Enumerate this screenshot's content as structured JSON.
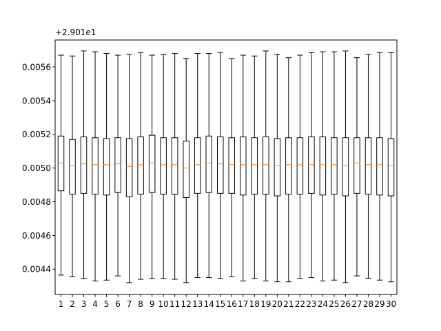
{
  "chart_data": {
    "type": "box",
    "title": "",
    "xlabel": "",
    "ylabel": "",
    "offset_text": "+2.901e1",
    "ylim": [
      0.00425,
      0.00576
    ],
    "yticks": [
      0.0044,
      0.0046,
      0.0048,
      0.005,
      0.0052,
      0.0054,
      0.0056
    ],
    "ytick_labels": [
      "0.0044",
      "0.0046",
      "0.0048",
      "0.0050",
      "0.0052",
      "0.0054",
      "0.0056"
    ],
    "categories": [
      "1",
      "2",
      "3",
      "4",
      "5",
      "6",
      "7",
      "8",
      "9",
      "10",
      "11",
      "12",
      "13",
      "14",
      "15",
      "16",
      "17",
      "18",
      "19",
      "20",
      "21",
      "22",
      "23",
      "24",
      "25",
      "26",
      "27",
      "28",
      "29",
      "30"
    ],
    "boxes": [
      {
        "whislo": 0.004365,
        "q1": 0.004865,
        "med": 0.00503,
        "q3": 0.00519,
        "whishi": 0.00567
      },
      {
        "whislo": 0.004355,
        "q1": 0.004845,
        "med": 0.005015,
        "q3": 0.00517,
        "whishi": 0.005665
      },
      {
        "whislo": 0.004345,
        "q1": 0.00485,
        "med": 0.005025,
        "q3": 0.005185,
        "whishi": 0.005695
      },
      {
        "whislo": 0.00433,
        "q1": 0.004845,
        "med": 0.00502,
        "q3": 0.00518,
        "whishi": 0.00569
      },
      {
        "whislo": 0.004335,
        "q1": 0.00484,
        "med": 0.00502,
        "q3": 0.005175,
        "whishi": 0.00568
      },
      {
        "whislo": 0.00436,
        "q1": 0.004855,
        "med": 0.005025,
        "q3": 0.00518,
        "whishi": 0.00567
      },
      {
        "whislo": 0.00432,
        "q1": 0.00483,
        "med": 0.00501,
        "q3": 0.005175,
        "whishi": 0.005675
      },
      {
        "whislo": 0.00434,
        "q1": 0.004845,
        "med": 0.00502,
        "q3": 0.005185,
        "whishi": 0.005685
      },
      {
        "whislo": 0.004345,
        "q1": 0.004855,
        "med": 0.00503,
        "q3": 0.005195,
        "whishi": 0.00567
      },
      {
        "whislo": 0.004345,
        "q1": 0.004845,
        "med": 0.00502,
        "q3": 0.00518,
        "whishi": 0.005675
      },
      {
        "whislo": 0.00434,
        "q1": 0.004845,
        "med": 0.00502,
        "q3": 0.00518,
        "whishi": 0.00568
      },
      {
        "whislo": 0.00432,
        "q1": 0.004825,
        "med": 0.005,
        "q3": 0.00516,
        "whishi": 0.00565
      },
      {
        "whislo": 0.00435,
        "q1": 0.00485,
        "med": 0.00502,
        "q3": 0.00518,
        "whishi": 0.00568
      },
      {
        "whislo": 0.00435,
        "q1": 0.004855,
        "med": 0.00503,
        "q3": 0.00519,
        "whishi": 0.00568
      },
      {
        "whislo": 0.004345,
        "q1": 0.00485,
        "med": 0.005025,
        "q3": 0.005185,
        "whishi": 0.005685
      },
      {
        "whislo": 0.004355,
        "q1": 0.00485,
        "med": 0.00502,
        "q3": 0.00518,
        "whishi": 0.00565
      },
      {
        "whislo": 0.00433,
        "q1": 0.00484,
        "med": 0.00502,
        "q3": 0.005185,
        "whishi": 0.00567
      },
      {
        "whislo": 0.004345,
        "q1": 0.004845,
        "med": 0.00502,
        "q3": 0.00518,
        "whishi": 0.005665
      },
      {
        "whislo": 0.00433,
        "q1": 0.004845,
        "med": 0.00502,
        "q3": 0.005185,
        "whishi": 0.005695
      },
      {
        "whislo": 0.004325,
        "q1": 0.004835,
        "med": 0.005015,
        "q3": 0.005175,
        "whishi": 0.005675
      },
      {
        "whislo": 0.004325,
        "q1": 0.004845,
        "med": 0.00502,
        "q3": 0.00518,
        "whishi": 0.005655
      },
      {
        "whislo": 0.004345,
        "q1": 0.004845,
        "med": 0.00502,
        "q3": 0.00518,
        "whishi": 0.00567
      },
      {
        "whislo": 0.00435,
        "q1": 0.00485,
        "med": 0.00502,
        "q3": 0.005185,
        "whishi": 0.005685
      },
      {
        "whislo": 0.00433,
        "q1": 0.00484,
        "med": 0.00502,
        "q3": 0.005185,
        "whishi": 0.00569
      },
      {
        "whislo": 0.004335,
        "q1": 0.004845,
        "med": 0.00502,
        "q3": 0.00518,
        "whishi": 0.00569
      },
      {
        "whislo": 0.00432,
        "q1": 0.004835,
        "med": 0.005015,
        "q3": 0.00518,
        "whishi": 0.005695
      },
      {
        "whislo": 0.00436,
        "q1": 0.00485,
        "med": 0.00503,
        "q3": 0.00518,
        "whishi": 0.005655
      },
      {
        "whislo": 0.004345,
        "q1": 0.004845,
        "med": 0.00502,
        "q3": 0.00518,
        "whishi": 0.005675
      },
      {
        "whislo": 0.004335,
        "q1": 0.00484,
        "med": 0.00502,
        "q3": 0.00518,
        "whishi": 0.005685
      },
      {
        "whislo": 0.004325,
        "q1": 0.004835,
        "med": 0.005015,
        "q3": 0.005175,
        "whishi": 0.005685
      }
    ],
    "grid": false,
    "legend": "none",
    "colors": {
      "box": "#000000",
      "median": "#ff7f0e",
      "background": "#ffffff"
    }
  }
}
